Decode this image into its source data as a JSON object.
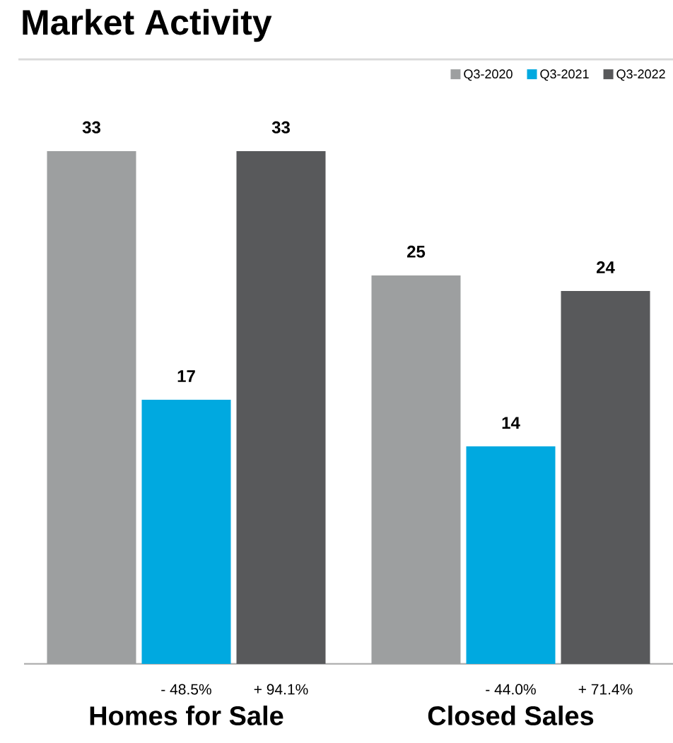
{
  "chart_data": {
    "type": "bar",
    "title": "Market Activity",
    "categories": [
      "Homes for Sale",
      "Closed Sales"
    ],
    "series": [
      {
        "name": "Q3-2020",
        "color": "#9d9fa0",
        "values": [
          33,
          25
        ]
      },
      {
        "name": "Q3-2021",
        "color": "#00a9e0",
        "values": [
          17,
          14
        ]
      },
      {
        "name": "Q3-2022",
        "color": "#58595b",
        "values": [
          33,
          24
        ]
      }
    ],
    "data_labels": true,
    "legend": "top right",
    "annotations": [
      "- 48.5%",
      "+ 94.1%",
      "- 44.0%",
      "+ 71.4%"
    ]
  }
}
